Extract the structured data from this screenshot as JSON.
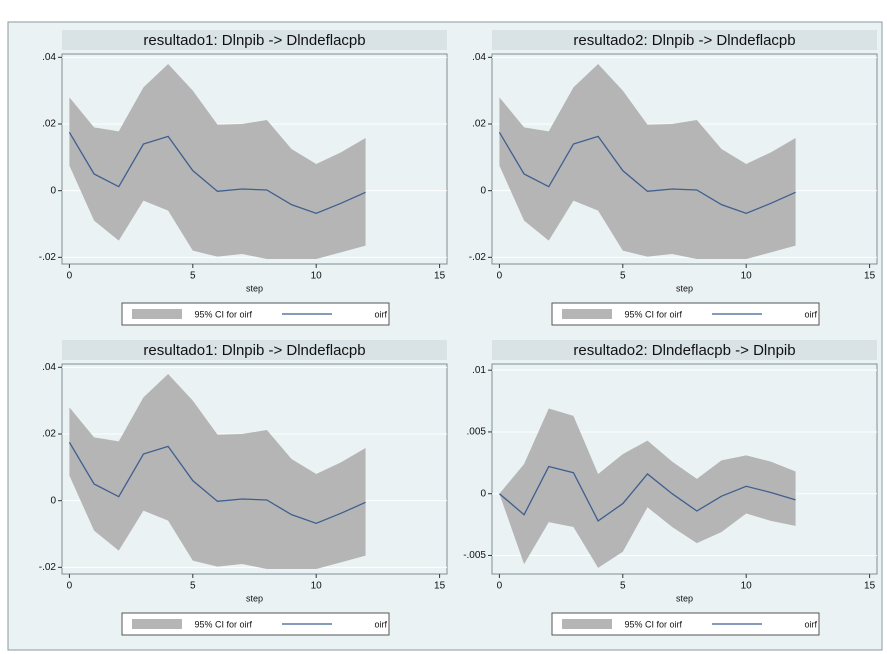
{
  "chart_data": [
    {
      "type": "line",
      "title": "resultado1: Dlnpib -> Dlndeflacpb",
      "xlabel": "step",
      "x": [
        0,
        1,
        2,
        3,
        4,
        5,
        6,
        7,
        8,
        9,
        10,
        11,
        12
      ],
      "xlim": [
        -0.3,
        15.3
      ],
      "xticks": [
        0,
        5,
        10,
        15
      ],
      "ylim": [
        -0.022,
        0.041
      ],
      "yticks": [
        {
          "value": -0.02,
          "label": "-.02"
        },
        0,
        {
          "value": 0.02,
          "label": ".02"
        },
        {
          "value": 0.04,
          "label": ".04"
        }
      ],
      "grid": true,
      "series": [
        {
          "name": "95% CI for oirf",
          "color": "#b5b5b5",
          "lower": [
            0.0075,
            -0.009,
            -0.015,
            -0.003,
            -0.006,
            -0.018,
            -0.0198,
            -0.019,
            -0.0205,
            -0.0205,
            -0.0205,
            -0.0185,
            -0.0165
          ],
          "upper": [
            0.028,
            0.019,
            0.0178,
            0.031,
            0.038,
            0.03,
            0.0198,
            0.02,
            0.0212,
            0.0125,
            0.008,
            0.0115,
            0.0158
          ]
        },
        {
          "name": "oirf",
          "color": "#3f5f8f",
          "values": [
            0.0175,
            0.005,
            0.0012,
            0.014,
            0.0163,
            0.006,
            -0.0002,
            0.0005,
            0.0002,
            -0.0042,
            -0.0068,
            -0.0038,
            -0.0005
          ]
        }
      ]
    },
    {
      "type": "line",
      "title": "resultado2: Dlnpib -> Dlndeflacpb",
      "xlabel": "step",
      "x": [
        0,
        1,
        2,
        3,
        4,
        5,
        6,
        7,
        8,
        9,
        10,
        11,
        12
      ],
      "xlim": [
        -0.3,
        15.3
      ],
      "xticks": [
        0,
        5,
        10,
        15
      ],
      "ylim": [
        -0.022,
        0.041
      ],
      "yticks": [
        {
          "value": -0.02,
          "label": "-.02"
        },
        0,
        {
          "value": 0.02,
          "label": ".02"
        },
        {
          "value": 0.04,
          "label": ".04"
        }
      ],
      "grid": true,
      "series": [
        {
          "name": "95% CI for oirf",
          "color": "#b5b5b5",
          "lower": [
            0.0075,
            -0.009,
            -0.015,
            -0.003,
            -0.006,
            -0.018,
            -0.0198,
            -0.019,
            -0.0205,
            -0.0205,
            -0.0205,
            -0.0185,
            -0.0165
          ],
          "upper": [
            0.028,
            0.019,
            0.0178,
            0.031,
            0.038,
            0.03,
            0.0198,
            0.02,
            0.0212,
            0.0125,
            0.008,
            0.0115,
            0.0158
          ]
        },
        {
          "name": "oirf",
          "color": "#3f5f8f",
          "values": [
            0.0175,
            0.005,
            0.0012,
            0.014,
            0.0163,
            0.006,
            -0.0002,
            0.0005,
            0.0002,
            -0.0042,
            -0.0068,
            -0.0038,
            -0.0005
          ]
        }
      ]
    },
    {
      "type": "line",
      "title": "resultado1: Dlnpib -> Dlndeflacpb",
      "xlabel": "step",
      "x": [
        0,
        1,
        2,
        3,
        4,
        5,
        6,
        7,
        8,
        9,
        10,
        11,
        12
      ],
      "xlim": [
        -0.3,
        15.3
      ],
      "xticks": [
        0,
        5,
        10,
        15
      ],
      "ylim": [
        -0.022,
        0.041
      ],
      "yticks": [
        {
          "value": -0.02,
          "label": "-.02"
        },
        0,
        {
          "value": 0.02,
          "label": ".02"
        },
        {
          "value": 0.04,
          "label": ".04"
        }
      ],
      "grid": true,
      "series": [
        {
          "name": "95% CI for oirf",
          "color": "#b5b5b5",
          "lower": [
            0.0075,
            -0.009,
            -0.015,
            -0.003,
            -0.006,
            -0.018,
            -0.0198,
            -0.019,
            -0.0205,
            -0.0205,
            -0.0205,
            -0.0185,
            -0.0165
          ],
          "upper": [
            0.028,
            0.019,
            0.0178,
            0.031,
            0.038,
            0.03,
            0.0198,
            0.02,
            0.0212,
            0.0125,
            0.008,
            0.0115,
            0.0158
          ]
        },
        {
          "name": "oirf",
          "color": "#3f5f8f",
          "values": [
            0.0175,
            0.005,
            0.0012,
            0.014,
            0.0163,
            0.006,
            -0.0002,
            0.0005,
            0.0002,
            -0.0042,
            -0.0068,
            -0.0038,
            -0.0005
          ]
        }
      ]
    },
    {
      "type": "line",
      "title": "resultado2: Dlndeflacpb -> Dlnpib",
      "xlabel": "step",
      "x": [
        0,
        1,
        2,
        3,
        4,
        5,
        6,
        7,
        8,
        9,
        10,
        11,
        12
      ],
      "xlim": [
        -0.3,
        15.3
      ],
      "xticks": [
        0,
        5,
        10,
        15
      ],
      "ylim": [
        -0.0065,
        0.0105
      ],
      "yticks": [
        {
          "value": -0.005,
          "label": "-.005"
        },
        0,
        {
          "value": 0.005,
          "label": ".005"
        },
        {
          "value": 0.01,
          "label": ".01"
        }
      ],
      "grid": true,
      "series": [
        {
          "name": "95% CI for oirf",
          "color": "#b5b5b5",
          "lower": [
            0,
            -0.0057,
            -0.0023,
            -0.0027,
            -0.006,
            -0.0047,
            -0.0011,
            -0.0027,
            -0.004,
            -0.0031,
            -0.0016,
            -0.0022,
            -0.0026
          ],
          "upper": [
            0,
            0.0024,
            0.0069,
            0.0063,
            0.0016,
            0.0032,
            0.0043,
            0.0026,
            0.0012,
            0.0027,
            0.0031,
            0.0026,
            0.0018
          ]
        },
        {
          "name": "oirf",
          "color": "#3f5f8f",
          "values": [
            0,
            -0.0017,
            0.0022,
            0.0017,
            -0.0022,
            -0.0008,
            0.0016,
            0,
            -0.0014,
            -0.0002,
            0.0006,
            0.0001,
            -0.0005
          ]
        }
      ]
    }
  ]
}
